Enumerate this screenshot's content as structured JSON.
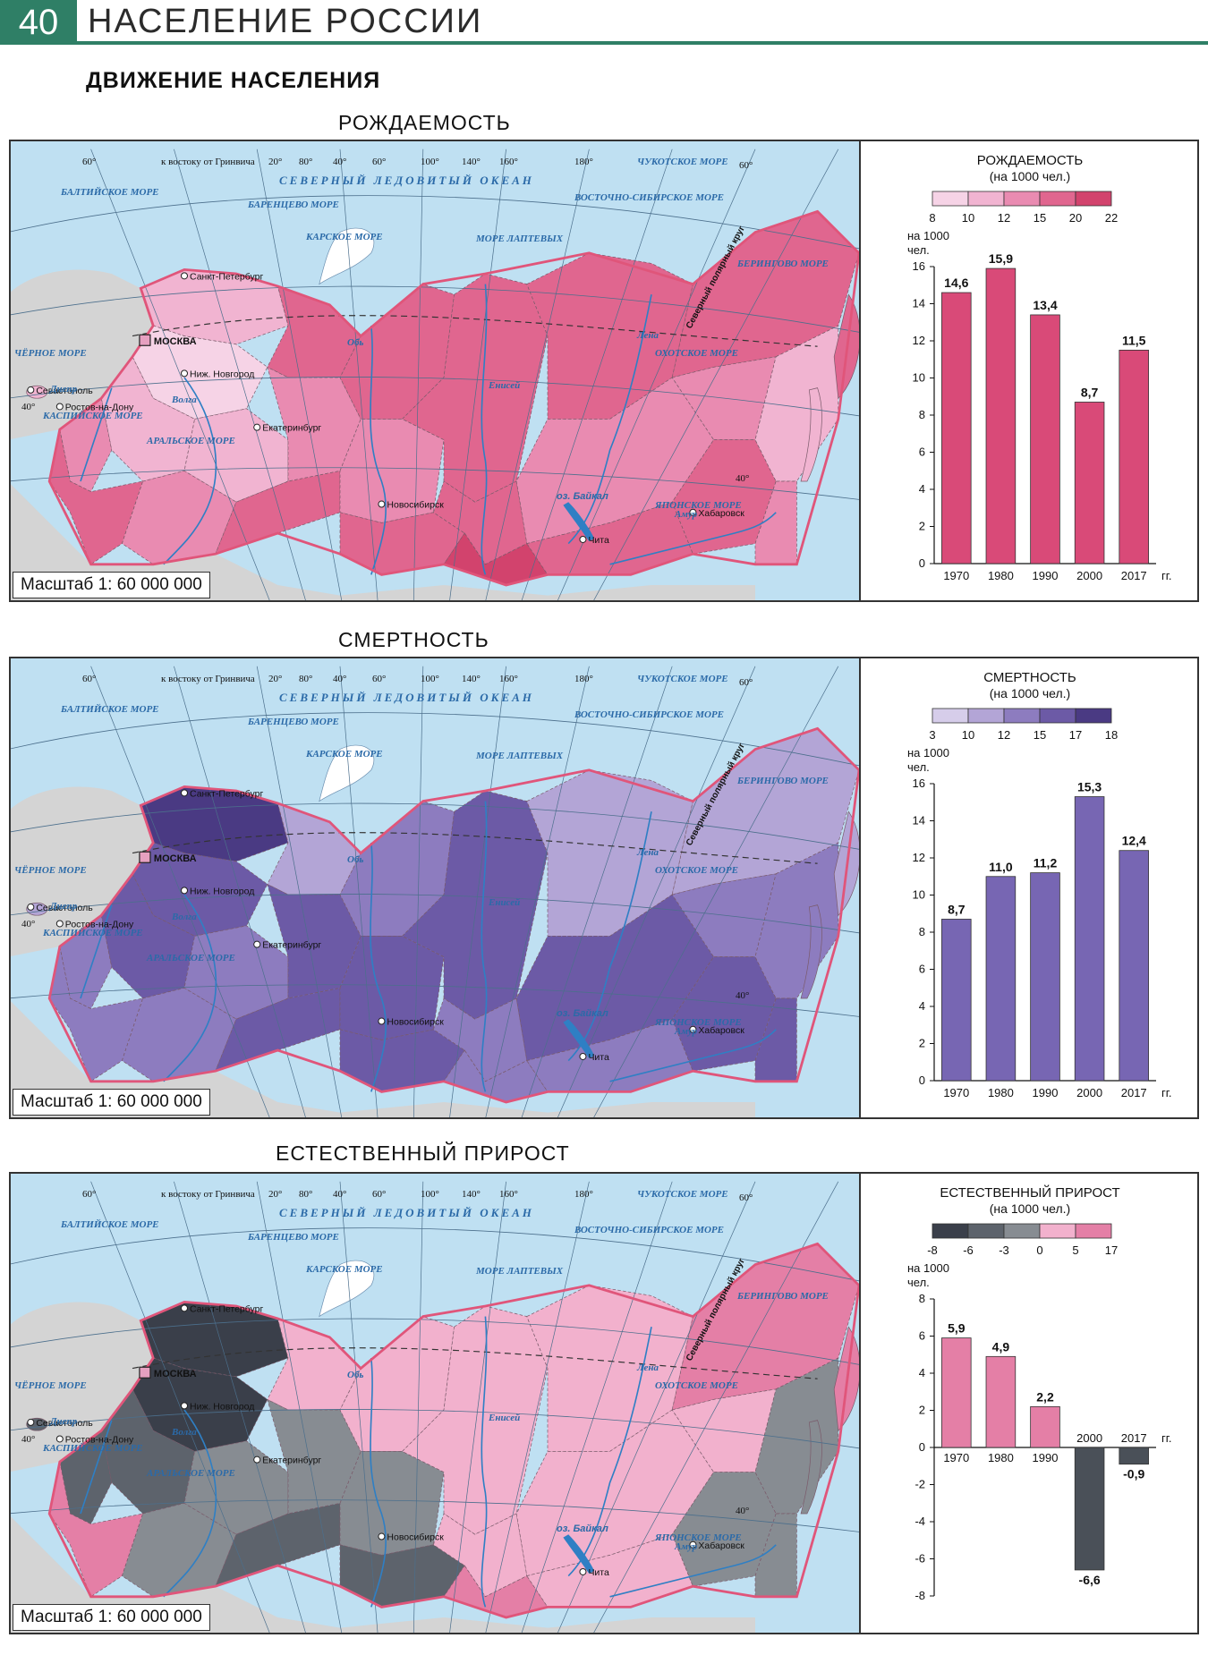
{
  "header": {
    "page_number": "40",
    "title": "НАСЕЛЕНИЕ РОССИИ"
  },
  "section_title": "ДВИЖЕНИЕ НАСЕЛЕНИЯ",
  "map_labels": {
    "grid": [
      "60°",
      "к востоку от Гринвича",
      "20°",
      "80°",
      "40°",
      "60°",
      "100°",
      "140°",
      "160°",
      "180°",
      "60°",
      "40°",
      "40°"
    ],
    "ocean": "СЕВЕРНЫЙ ЛЕДОВИТЫЙ ОКЕАН",
    "seas": [
      "ЧУКОТСКОЕ МОРЕ",
      "ВОСТОЧНО-СИБИРСКОЕ МОРЕ",
      "МОРЕ ЛАПТЕВЫХ",
      "КАРСКОЕ МОРЕ",
      "БАРЕНЦЕВО МОРЕ",
      "БАЛТИЙСКОЕ МОРЕ",
      "ЧЁРНОЕ МОРЕ",
      "КАСПИЙСКОЕ МОРЕ",
      "АРАЛЬСКОЕ МОРЕ",
      "ОХОТСКОЕ МОРЕ",
      "БЕРИНГОВО МОРЕ",
      "ЯПОНСКОЕ МОРЕ"
    ],
    "cities": [
      "Санкт-Петербург",
      "МОСКВА",
      "Ниж. Новгород",
      "Севастополь",
      "Ростов-на-Дону",
      "Екатеринбург",
      "Новосибирск",
      "Чита",
      "Хабаровск"
    ],
    "rivers": [
      "Обь",
      "Енисей",
      "Лена",
      "Амур",
      "Днепр",
      "Волга"
    ],
    "lake": "оз. Байкал",
    "arctic_circle": "Северный полярный круг",
    "scale": "Масштаб 1: 60 000 000"
  },
  "colors": {
    "water": "#bfe0f2",
    "foreign": "#d4d4d4",
    "border": "#e0557a",
    "birth": [
      "#f6d3e6",
      "#f1b4d1",
      "#e98bb1",
      "#e0668f",
      "#d2436d"
    ],
    "death": [
      "#d6cdea",
      "#b3a5d6",
      "#8d7cbf",
      "#6c5aa6",
      "#4a3a83"
    ],
    "growth": [
      "#3a3f4a",
      "#5d636c",
      "#878c92",
      "#f2b1cd",
      "#e47fa6"
    ],
    "birth_bar": "#d94a78",
    "death_bar": "#7766b3",
    "growth_neg_bar": "#4a5058"
  },
  "maps": [
    {
      "title": "РОЖДАЕМОСТЬ",
      "palette": "birth"
    },
    {
      "title": "СМЕРТНОСТЬ",
      "palette": "death"
    },
    {
      "title": "ЕСТЕСТВЕННЫЙ ПРИРОСТ",
      "palette": "growth"
    }
  ],
  "chart_data": [
    {
      "type": "bar",
      "title": "РОЖДАЕМОСТЬ",
      "subtitle": "(на 1000 чел.)",
      "legend_ticks": [
        "8",
        "10",
        "12",
        "15",
        "20",
        "22"
      ],
      "ylabel": "на 1000 чел.",
      "xunit": "гг.",
      "categories": [
        "1970",
        "1980",
        "1990",
        "2000",
        "2017"
      ],
      "values": [
        14.6,
        15.9,
        13.4,
        8.7,
        11.5
      ],
      "value_labels": [
        "14,6",
        "15,9",
        "13,4",
        "8,7",
        "11,5"
      ],
      "ylim": [
        0,
        16
      ],
      "yticks": [
        0,
        2,
        4,
        6,
        8,
        10,
        12,
        14,
        16
      ]
    },
    {
      "type": "bar",
      "title": "СМЕРТНОСТЬ",
      "subtitle": "(на 1000 чел.)",
      "legend_ticks": [
        "3",
        "10",
        "12",
        "15",
        "17",
        "18"
      ],
      "ylabel": "на 1000 чел.",
      "xunit": "гг.",
      "categories": [
        "1970",
        "1980",
        "1990",
        "2000",
        "2017"
      ],
      "values": [
        8.7,
        11.0,
        11.2,
        15.3,
        12.4
      ],
      "value_labels": [
        "8,7",
        "11,0",
        "11,2",
        "15,3",
        "12,4"
      ],
      "ylim": [
        0,
        16
      ],
      "yticks": [
        0,
        2,
        4,
        6,
        8,
        10,
        12,
        14,
        16
      ]
    },
    {
      "type": "bar",
      "title": "ЕСТЕСТВЕННЫЙ ПРИРОСТ",
      "subtitle": "(на 1000 чел.)",
      "legend_ticks": [
        "-8",
        "-6",
        "-3",
        "0",
        "5",
        "17"
      ],
      "ylabel": "на 1000 чел.",
      "xunit": "гг.",
      "categories": [
        "1970",
        "1980",
        "1990",
        "2000",
        "2017"
      ],
      "values": [
        5.9,
        4.9,
        2.2,
        -6.6,
        -0.9
      ],
      "value_labels": [
        "5,9",
        "4,9",
        "2,2",
        "-6,6",
        "-0,9"
      ],
      "ylim": [
        -8,
        8
      ],
      "yticks": [
        -8,
        -6,
        -4,
        -2,
        0,
        2,
        4,
        6,
        8
      ]
    }
  ]
}
